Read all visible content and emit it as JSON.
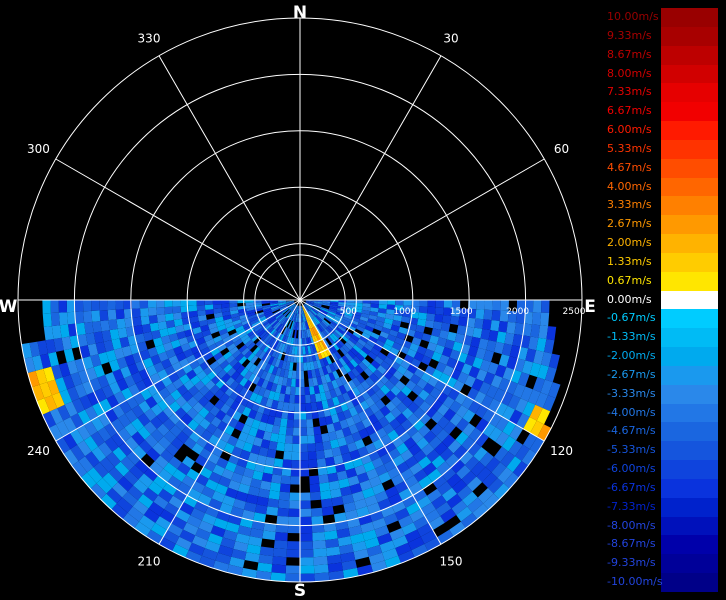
{
  "chart_data": {
    "type": "heatmap",
    "subtype": "polar radar PPI (radial velocity)",
    "cardinals": [
      "N",
      "E",
      "S",
      "W"
    ],
    "azimuth_labels": [
      "30",
      "60",
      "120",
      "150",
      "210",
      "240",
      "300",
      "330"
    ],
    "range_labels": [
      "500",
      "1000",
      "1500",
      "2000",
      "2500"
    ],
    "range_max": 2500,
    "data_sector_deg": [
      90,
      270
    ],
    "legend": {
      "labels": [
        "10.00m/s",
        "9.33m/s",
        "8.67m/s",
        "8.00m/s",
        "7.33m/s",
        "6.67m/s",
        "6.00m/s",
        "5.33m/s",
        "4.67m/s",
        "4.00m/s",
        "3.33m/s",
        "2.67m/s",
        "2.00m/s",
        "1.33m/s",
        "0.67m/s",
        "0.00m/s",
        "-0.67m/s",
        "-1.33m/s",
        "-2.00m/s",
        "-2.67m/s",
        "-3.33m/s",
        "-4.00m/s",
        "-4.67m/s",
        "-5.33m/s",
        "-6.00m/s",
        "-6.67m/s",
        "-7.33m/s",
        "-8.00m/s",
        "-8.67m/s",
        "-9.33m/s",
        "-10.00m/s"
      ],
      "colors": [
        "#990000",
        "#a80000",
        "#bd0000",
        "#d10000",
        "#e60000",
        "#f20000",
        "#ff1a00",
        "#ff3300",
        "#ff4d00",
        "#ff6600",
        "#ff8000",
        "#ff9900",
        "#ffb300",
        "#ffcc00",
        "#ffe600",
        "#ffffff",
        "#00ccff",
        "#00bbf5",
        "#00aaee",
        "#1a99ee",
        "#2a88ea",
        "#2277e6",
        "#1a66e0",
        "#1555dd",
        "#0f44dd",
        "#0a33dd",
        "#0022cc",
        "#0011bb",
        "#0000aa",
        "#000099",
        "#000088"
      ]
    }
  }
}
